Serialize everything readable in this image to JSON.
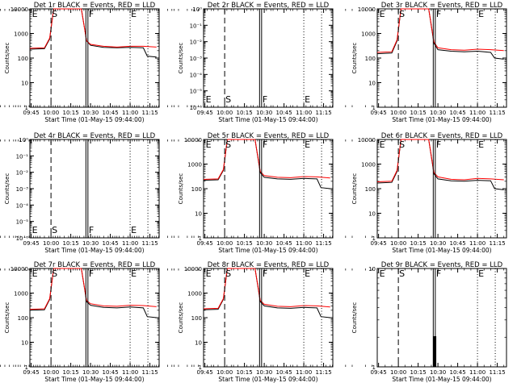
{
  "chart_data": [
    {
      "type": "line",
      "title": "Det 1r BLACK = Events, RED = LLD",
      "xlabel": "Start Time (01-May-15 09:44:00)",
      "ylabel": "Counts/sec",
      "scale": "log",
      "ylim": [
        1,
        10000
      ],
      "y_ticks": [
        "1",
        "10",
        "100",
        "1000",
        "10000"
      ],
      "x_tick_labels": [
        "09:45",
        "10:00",
        "10:15",
        "10:30",
        "10:45",
        "11:00",
        "11:15"
      ],
      "markers": [
        {
          "letter": "E",
          "x": "09:45",
          "line": "none"
        },
        {
          "letter": "S",
          "x": "10:00",
          "line": "dashed"
        },
        {
          "letter": "F",
          "x": "10:28",
          "line": "solid"
        },
        {
          "letter": "E",
          "x": "11:00",
          "line": "dotted"
        }
      ],
      "series": [
        {
          "name": "Events",
          "color": "#000000",
          "x": [
            "09:44",
            "09:55",
            "09:59",
            "10:02",
            "10:09",
            "10:23",
            "10:27",
            "10:30",
            "10:40",
            "10:50",
            "11:00",
            "11:10",
            "11:13",
            "11:20"
          ],
          "y": [
            230,
            240,
            600,
            10000,
            10000,
            10000,
            500,
            330,
            270,
            260,
            270,
            260,
            120,
            110
          ]
        },
        {
          "name": "LLD",
          "color": "#ff0000",
          "x": [
            "09:44",
            "09:55",
            "09:59",
            "10:02",
            "10:09",
            "10:23",
            "10:27",
            "10:30",
            "10:40",
            "10:50",
            "11:00",
            "11:10",
            "11:20"
          ],
          "y": [
            250,
            260,
            650,
            10000,
            10000,
            10000,
            500,
            360,
            300,
            280,
            300,
            300,
            280
          ]
        }
      ]
    },
    {
      "type": "line",
      "title": "Det 2r BLACK = Events, RED = LLD",
      "xlabel": "Start Time (01-May-15 09:44:00)",
      "ylabel": "Counts/sec",
      "scale": "log",
      "ylim": [
        1e-06,
        1
      ],
      "y_ticks": [
        "10⁻⁶",
        "10⁻⁵",
        "10⁻⁴",
        "10⁻³",
        "10⁻²",
        "10⁻¹",
        "10⁰"
      ],
      "x_tick_labels": [
        "09:45",
        "10:00",
        "10:15",
        "10:30",
        "10:45",
        "11:00",
        "11:15"
      ],
      "markers": [
        {
          "letter": "E",
          "x": "09:45",
          "line": "none"
        },
        {
          "letter": "S",
          "x": "10:00",
          "line": "dashed"
        },
        {
          "letter": "F",
          "x": "10:28",
          "line": "solid"
        },
        {
          "letter": "E",
          "x": "11:00",
          "line": "dotted"
        }
      ],
      "series": []
    },
    {
      "type": "line",
      "title": "Det 3r BLACK = Events, RED = LLD",
      "xlabel": "Start Time (01-May-15 09:44:00)",
      "ylabel": "Counts/sec",
      "scale": "log",
      "ylim": [
        1,
        10000
      ],
      "y_ticks": [
        "1",
        "10",
        "100",
        "1000",
        "10000"
      ],
      "x_tick_labels": [
        "09:45",
        "10:00",
        "10:15",
        "10:30",
        "10:45",
        "11:00",
        "11:15"
      ],
      "markers": [
        {
          "letter": "E",
          "x": "09:45",
          "line": "none"
        },
        {
          "letter": "S",
          "x": "10:00",
          "line": "dashed"
        },
        {
          "letter": "F",
          "x": "10:28",
          "line": "solid"
        },
        {
          "letter": "E",
          "x": "11:00",
          "line": "dotted"
        }
      ],
      "series": [
        {
          "name": "Events",
          "color": "#000000",
          "x": [
            "09:44",
            "09:55",
            "09:59",
            "10:02",
            "10:09",
            "10:23",
            "10:27",
            "10:30",
            "10:40",
            "10:50",
            "11:00",
            "11:10",
            "11:13",
            "11:20"
          ],
          "y": [
            150,
            160,
            500,
            10000,
            10000,
            10000,
            400,
            220,
            190,
            180,
            190,
            170,
            100,
            90
          ]
        },
        {
          "name": "LLD",
          "color": "#ff0000",
          "x": [
            "09:44",
            "09:55",
            "09:59",
            "10:02",
            "10:09",
            "10:23",
            "10:27",
            "10:30",
            "10:40",
            "10:50",
            "11:00",
            "11:10",
            "11:20"
          ],
          "y": [
            170,
            180,
            550,
            10000,
            10000,
            10000,
            450,
            260,
            220,
            210,
            230,
            220,
            200
          ]
        }
      ]
    },
    {
      "type": "line",
      "title": "Det 4r BLACK = Events, RED = LLD",
      "xlabel": "Start Time (01-May-15 09:44:00)",
      "ylabel": "Counts/sec",
      "scale": "log",
      "ylim": [
        1e-06,
        1
      ],
      "y_ticks": [
        "10⁻⁶",
        "10⁻⁵",
        "10⁻⁴",
        "10⁻³",
        "10⁻²",
        "10⁻¹",
        "10⁰"
      ],
      "x_tick_labels": [
        "09:45",
        "10:00",
        "10:15",
        "10:30",
        "10:45",
        "11:00",
        "11:15"
      ],
      "markers": [
        {
          "letter": "E",
          "x": "09:45",
          "line": "none"
        },
        {
          "letter": "S",
          "x": "10:00",
          "line": "dashed"
        },
        {
          "letter": "F",
          "x": "10:28",
          "line": "solid"
        },
        {
          "letter": "E",
          "x": "11:00",
          "line": "dotted"
        }
      ],
      "series": []
    },
    {
      "type": "line",
      "title": "Det 5r BLACK = Events, RED = LLD",
      "xlabel": "Start Time (01-May-15 09:44:00)",
      "ylabel": "Counts/sec",
      "scale": "log",
      "ylim": [
        1,
        10000
      ],
      "y_ticks": [
        "1",
        "10",
        "100",
        "1000",
        "10000"
      ],
      "x_tick_labels": [
        "09:45",
        "10:00",
        "10:15",
        "10:30",
        "10:45",
        "11:00",
        "11:15"
      ],
      "markers": [
        {
          "letter": "E",
          "x": "09:45",
          "line": "none"
        },
        {
          "letter": "S",
          "x": "10:00",
          "line": "dashed"
        },
        {
          "letter": "F",
          "x": "10:28",
          "line": "solid"
        },
        {
          "letter": "E",
          "x": "11:00",
          "line": "dotted"
        }
      ],
      "series": [
        {
          "name": "Events",
          "color": "#000000",
          "x": [
            "09:44",
            "09:55",
            "09:59",
            "10:02",
            "10:09",
            "10:23",
            "10:27",
            "10:30",
            "10:40",
            "10:50",
            "11:00",
            "11:10",
            "11:13",
            "11:20"
          ],
          "y": [
            220,
            230,
            550,
            10000,
            10000,
            10000,
            450,
            290,
            250,
            240,
            260,
            250,
            110,
            100
          ]
        },
        {
          "name": "LLD",
          "color": "#ff0000",
          "x": [
            "09:44",
            "09:55",
            "09:59",
            "10:02",
            "10:09",
            "10:23",
            "10:27",
            "10:30",
            "10:40",
            "10:50",
            "11:00",
            "11:10",
            "11:20"
          ],
          "y": [
            240,
            250,
            600,
            10000,
            10000,
            10000,
            500,
            340,
            290,
            280,
            310,
            300,
            270
          ]
        }
      ]
    },
    {
      "type": "line",
      "title": "Det 6r BLACK = Events, RED = LLD",
      "xlabel": "Start Time (01-May-15 09:44:00)",
      "ylabel": "Counts/sec",
      "scale": "log",
      "ylim": [
        1,
        10000
      ],
      "y_ticks": [
        "1",
        "10",
        "100",
        "1000",
        "10000"
      ],
      "x_tick_labels": [
        "09:45",
        "10:00",
        "10:15",
        "10:30",
        "10:45",
        "11:00",
        "11:15"
      ],
      "markers": [
        {
          "letter": "E",
          "x": "09:45",
          "line": "none"
        },
        {
          "letter": "S",
          "x": "10:00",
          "line": "dashed"
        },
        {
          "letter": "F",
          "x": "10:28",
          "line": "solid"
        },
        {
          "letter": "E",
          "x": "11:00",
          "line": "dotted"
        }
      ],
      "series": [
        {
          "name": "Events",
          "color": "#000000",
          "x": [
            "09:44",
            "09:55",
            "09:59",
            "10:02",
            "10:09",
            "10:23",
            "10:27",
            "10:30",
            "10:40",
            "10:50",
            "11:00",
            "11:10",
            "11:13",
            "11:20"
          ],
          "y": [
            170,
            180,
            500,
            10000,
            10000,
            10000,
            400,
            250,
            210,
            200,
            220,
            210,
            100,
            90
          ]
        },
        {
          "name": "LLD",
          "color": "#ff0000",
          "x": [
            "09:44",
            "09:55",
            "09:59",
            "10:02",
            "10:09",
            "10:23",
            "10:27",
            "10:30",
            "10:40",
            "10:50",
            "11:00",
            "11:10",
            "11:20"
          ],
          "y": [
            190,
            200,
            550,
            10000,
            10000,
            10000,
            450,
            300,
            240,
            230,
            260,
            250,
            230
          ]
        }
      ]
    },
    {
      "type": "line",
      "title": "Det 7r BLACK = Events, RED = LLD",
      "xlabel": "Start Time (01-May-15 09:44:00)",
      "ylabel": "Counts/sec",
      "scale": "log",
      "ylim": [
        1,
        10000
      ],
      "y_ticks": [
        "1",
        "10",
        "100",
        "1000",
        "10000"
      ],
      "x_tick_labels": [
        "09:45",
        "10:00",
        "10:15",
        "10:30",
        "10:45",
        "11:00",
        "11:15"
      ],
      "markers": [
        {
          "letter": "E",
          "x": "09:45",
          "line": "none"
        },
        {
          "letter": "S",
          "x": "10:00",
          "line": "dashed"
        },
        {
          "letter": "F",
          "x": "10:28",
          "line": "solid"
        },
        {
          "letter": "E",
          "x": "11:00",
          "line": "dotted"
        }
      ],
      "series": [
        {
          "name": "Events",
          "color": "#000000",
          "x": [
            "09:44",
            "09:55",
            "09:59",
            "10:02",
            "10:09",
            "10:23",
            "10:27",
            "10:30",
            "10:40",
            "10:50",
            "11:00",
            "11:10",
            "11:13",
            "11:20"
          ],
          "y": [
            200,
            210,
            550,
            10000,
            10000,
            10000,
            450,
            320,
            260,
            250,
            270,
            250,
            110,
            100
          ]
        },
        {
          "name": "LLD",
          "color": "#ff0000",
          "x": [
            "09:44",
            "09:55",
            "09:59",
            "10:02",
            "10:09",
            "10:23",
            "10:27",
            "10:30",
            "10:40",
            "10:50",
            "11:00",
            "11:10",
            "11:20"
          ],
          "y": [
            220,
            230,
            600,
            10000,
            10000,
            10000,
            500,
            370,
            300,
            290,
            320,
            310,
            280
          ]
        }
      ]
    },
    {
      "type": "line",
      "title": "Det 8r BLACK = Events, RED = LLD",
      "xlabel": "Start Time (01-May-15 09:44:00)",
      "ylabel": "Counts/sec",
      "scale": "log",
      "ylim": [
        1,
        10000
      ],
      "y_ticks": [
        "1",
        "10",
        "100",
        "1000",
        "10000"
      ],
      "x_tick_labels": [
        "09:45",
        "10:00",
        "10:15",
        "10:30",
        "10:45",
        "11:00",
        "11:15"
      ],
      "markers": [
        {
          "letter": "E",
          "x": "09:45",
          "line": "none"
        },
        {
          "letter": "S",
          "x": "10:00",
          "line": "dashed"
        },
        {
          "letter": "F",
          "x": "10:28",
          "line": "solid"
        },
        {
          "letter": "E",
          "x": "11:00",
          "line": "dotted"
        }
      ],
      "series": [
        {
          "name": "Events",
          "color": "#000000",
          "x": [
            "09:44",
            "09:55",
            "09:59",
            "10:02",
            "10:09",
            "10:23",
            "10:27",
            "10:30",
            "10:40",
            "10:50",
            "11:00",
            "11:10",
            "11:13",
            "11:20"
          ],
          "y": [
            210,
            220,
            550,
            10000,
            10000,
            10000,
            450,
            300,
            250,
            240,
            260,
            250,
            110,
            100
          ]
        },
        {
          "name": "LLD",
          "color": "#ff0000",
          "x": [
            "09:44",
            "09:55",
            "09:59",
            "10:02",
            "10:09",
            "10:23",
            "10:27",
            "10:30",
            "10:40",
            "10:50",
            "11:00",
            "11:10",
            "11:20"
          ],
          "y": [
            230,
            240,
            600,
            10000,
            10000,
            10000,
            500,
            350,
            290,
            280,
            310,
            300,
            270
          ]
        }
      ]
    },
    {
      "type": "line",
      "title": "Det 9r BLACK = Events, RED = LLD",
      "xlabel": "Start Time (01-May-15 09:44:00)",
      "ylabel": "Counts/sec",
      "scale": "log",
      "ylim": [
        1,
        10
      ],
      "y_ticks": [
        "1",
        "10"
      ],
      "x_tick_labels": [
        "09:45",
        "10:00",
        "10:15",
        "10:30",
        "10:45",
        "11:00",
        "11:15"
      ],
      "markers": [
        {
          "letter": "E",
          "x": "09:45",
          "line": "none"
        },
        {
          "letter": "S",
          "x": "10:00",
          "line": "dashed"
        },
        {
          "letter": "F",
          "x": "10:28",
          "line": "solid"
        },
        {
          "letter": "E",
          "x": "11:00",
          "line": "dotted"
        }
      ],
      "series": [
        {
          "name": "Events",
          "color": "#000000",
          "x": [
            "10:27",
            "10:27",
            "10:28",
            "10:28"
          ],
          "y": [
            1,
            2,
            2,
            1
          ]
        }
      ]
    }
  ]
}
